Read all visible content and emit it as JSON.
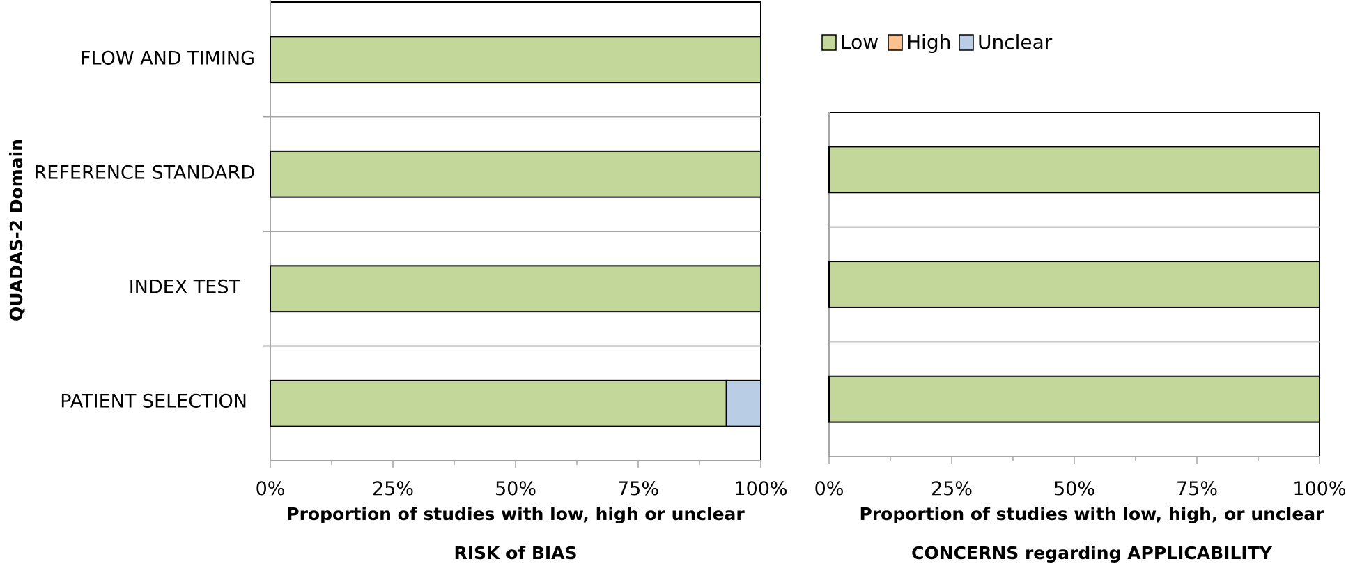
{
  "legend": [
    {
      "label": "Low",
      "color": "#c4d79b"
    },
    {
      "label": "High",
      "color": "#fac090"
    },
    {
      "label": "Unclear",
      "color": "#b9cde5"
    }
  ],
  "y_axis_title": "QUADAS-2 Domain",
  "chart_data": [
    {
      "type": "bar",
      "orientation": "horizontal",
      "stacked": true,
      "categories": [
        "PATIENT SELECTION",
        "INDEX TEST",
        "REFERENCE STANDARD",
        "FLOW AND TIMING"
      ],
      "series": [
        {
          "name": "Low",
          "values": [
            93,
            100,
            100,
            100
          ]
        },
        {
          "name": "High",
          "values": [
            0,
            0,
            0,
            0
          ]
        },
        {
          "name": "Unclear",
          "values": [
            7,
            0,
            0,
            0
          ]
        }
      ],
      "xticks": [
        "0%",
        "25%",
        "50%",
        "75%",
        "100%"
      ],
      "xlim": [
        0,
        100
      ],
      "xlabel_line1": "Proportion of studies with low, high or unclear",
      "xlabel_line2": "RISK of BIAS",
      "ylabel": "QUADAS-2 Domain"
    },
    {
      "type": "bar",
      "orientation": "horizontal",
      "stacked": true,
      "categories": [
        "PATIENT SELECTION",
        "INDEX TEST",
        "REFERENCE STANDARD"
      ],
      "series": [
        {
          "name": "Low",
          "values": [
            100,
            100,
            100
          ]
        },
        {
          "name": "High",
          "values": [
            0,
            0,
            0
          ]
        },
        {
          "name": "Unclear",
          "values": [
            0,
            0,
            0
          ]
        }
      ],
      "xticks": [
        "0%",
        "25%",
        "50%",
        "75%",
        "100%"
      ],
      "xlim": [
        0,
        100
      ],
      "xlabel_line1": "Proportion of studies with low, high, or unclear",
      "xlabel_line2": "CONCERNS regarding APPLICABILITY"
    }
  ],
  "colors": {
    "Low": "#c4d79b",
    "High": "#fac090",
    "Unclear": "#b9cde5",
    "grid": "#a6a6a6"
  }
}
